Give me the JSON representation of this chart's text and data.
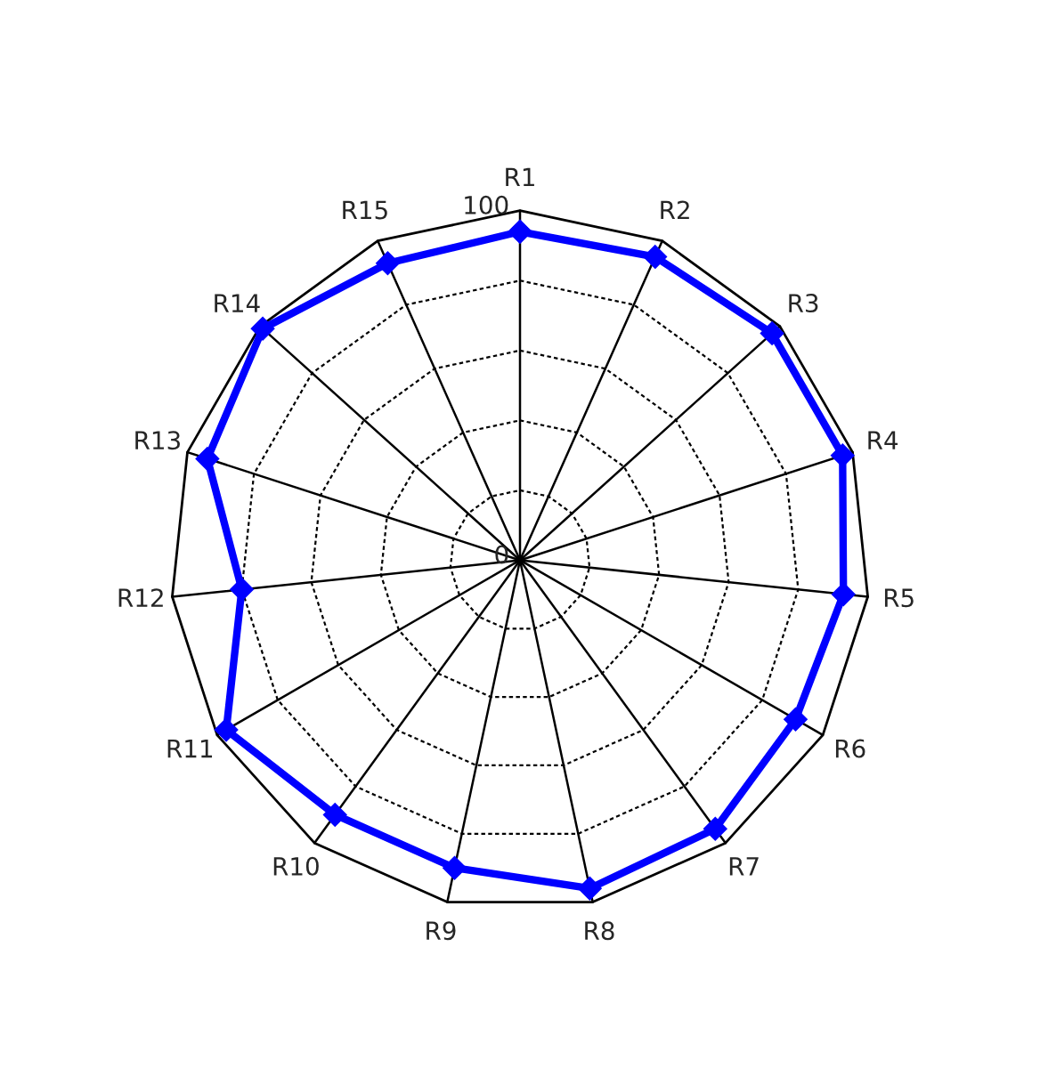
{
  "chart_data": {
    "type": "radar",
    "categories": [
      "R1",
      "R2",
      "R3",
      "R4",
      "R5",
      "R6",
      "R7",
      "R8",
      "R9",
      "R10",
      "R11",
      "R12",
      "R13",
      "R14",
      "R15"
    ],
    "series": [
      {
        "color": "#0000ff",
        "values": [
          94,
          95,
          97,
          97,
          93,
          91,
          95,
          96,
          90,
          90,
          97,
          80,
          94,
          99,
          93
        ]
      }
    ],
    "ylim": [
      0,
      100
    ],
    "yticks": [
      0,
      100
    ],
    "marker": "diamond",
    "line_style": "solid",
    "grid": true,
    "legend": false
  }
}
